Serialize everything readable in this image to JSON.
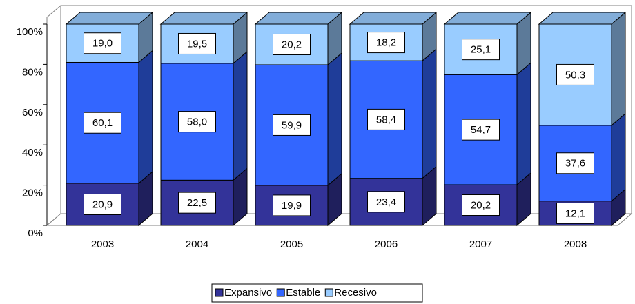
{
  "chart_data": {
    "type": "bar3d_stacked",
    "categories": [
      "2003",
      "2004",
      "2005",
      "2006",
      "2007",
      "2008"
    ],
    "series": [
      {
        "name": "Expansivo",
        "color": "#333399",
        "values": [
          20.9,
          22.5,
          19.9,
          23.4,
          20.2,
          12.1
        ],
        "value_labels": [
          "20,9",
          "22,5",
          "19,9",
          "23,4",
          "20,2",
          "12,1"
        ]
      },
      {
        "name": "Estable",
        "color": "#3366ff",
        "values": [
          60.1,
          58.0,
          59.9,
          58.4,
          54.7,
          37.6
        ],
        "value_labels": [
          "60,1",
          "58,0",
          "59,9",
          "58,4",
          "54,7",
          "37,6"
        ]
      },
      {
        "name": "Recesivo",
        "color": "#99ccff",
        "values": [
          19.0,
          19.5,
          20.2,
          18.2,
          25.1,
          50.3
        ],
        "value_labels": [
          "19,0",
          "19,5",
          "20,2",
          "18,2",
          "25,1",
          "50,3"
        ]
      }
    ],
    "ylim": [
      0,
      100
    ],
    "yticks": [
      {
        "value": 0,
        "label": "0%"
      },
      {
        "value": 20,
        "label": "20%"
      },
      {
        "value": 40,
        "label": "40%"
      },
      {
        "value": 60,
        "label": "60%"
      },
      {
        "value": 80,
        "label": "80%"
      },
      {
        "value": 100,
        "label": "100%"
      }
    ],
    "legend": "bottom"
  }
}
